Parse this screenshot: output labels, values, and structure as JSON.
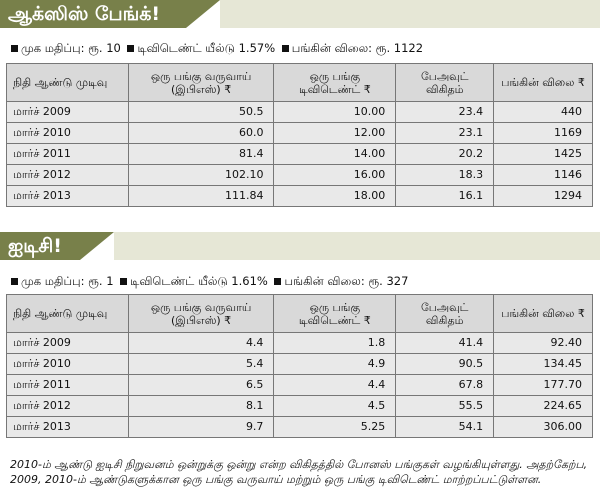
{
  "colors": {
    "banner": "#78804a",
    "banner_light": "#e6e7d6",
    "header_bg": "#d9d9d9",
    "row_bg": "#e9e9e9"
  },
  "section1": {
    "title": "ஆக்ஸிஸ் பேங்க்!",
    "meta": {
      "face_value_label": "முக மதிப்பு: ரூ. 10",
      "dividend_yield_label": "டிவிடெண்ட் யீல்டு 1.57%",
      "share_price_label": "பங்கின் விலை: ரூ. 1122"
    },
    "headers": [
      "நிதி ஆண்டு முடிவு",
      "ஒரு பங்கு வருவாய் (இபிஎஸ்) ₹",
      "ஒரு பங்கு டிவிடெண்ட் ₹",
      "பேஅவுட் விகிதம்",
      "பங்கின் விலை ₹"
    ],
    "rows": [
      [
        "மார்ச் 2009",
        "50.5",
        "10.00",
        "23.4",
        "440"
      ],
      [
        "மார்ச் 2010",
        "60.0",
        "12.00",
        "23.1",
        "1169"
      ],
      [
        "மார்ச் 2011",
        "81.4",
        "14.00",
        "20.2",
        "1425"
      ],
      [
        "மார்ச் 2012",
        "102.10",
        "16.00",
        "18.3",
        "1146"
      ],
      [
        "மார்ச் 2013",
        "111.84",
        "18.00",
        "16.1",
        "1294"
      ]
    ]
  },
  "section2": {
    "title": "ஐடிசி!",
    "meta": {
      "face_value_label": "முக மதிப்பு: ரூ. 1",
      "dividend_yield_label": "டிவிடெண்ட் யீல்டு 1.61%",
      "share_price_label": "பங்கின் விலை: ரூ. 327"
    },
    "headers": [
      "நிதி ஆண்டு முடிவு",
      "ஒரு பங்கு வருவாய் (இபிஎஸ்) ₹",
      "ஒரு பங்கு டிவிடெண்ட் ₹",
      "பேஅவுட் விகிதம்",
      "பங்கின் விலை ₹"
    ],
    "rows": [
      [
        "மார்ச் 2009",
        "4.4",
        "1.8",
        "41.4",
        "92.40"
      ],
      [
        "மார்ச் 2010",
        "5.4",
        "4.9",
        "90.5",
        "134.45"
      ],
      [
        "மார்ச் 2011",
        "6.5",
        "4.4",
        "67.8",
        "177.70"
      ],
      [
        "மார்ச் 2012",
        "8.1",
        "4.5",
        "55.5",
        "224.65"
      ],
      [
        "மார்ச் 2013",
        "9.7",
        "5.25",
        "54.1",
        "306.00"
      ]
    ]
  },
  "footnote": "2010-ம் ஆண்டு ஐடிசி நிறுவனம் ஒன்றுக்கு ஒன்று என்ற விகிதத்தில் போனஸ் பங்குகள் வழங்கியுள்ளது. அதற்கேற்ப, 2009, 2010-ம் ஆண்டுகளுக்கான ஒரு பங்கு வருவாய் மற்றும் ஒரு பங்கு டிவிடெண்ட் மாற்றப்பட்டுள்ளன."
}
